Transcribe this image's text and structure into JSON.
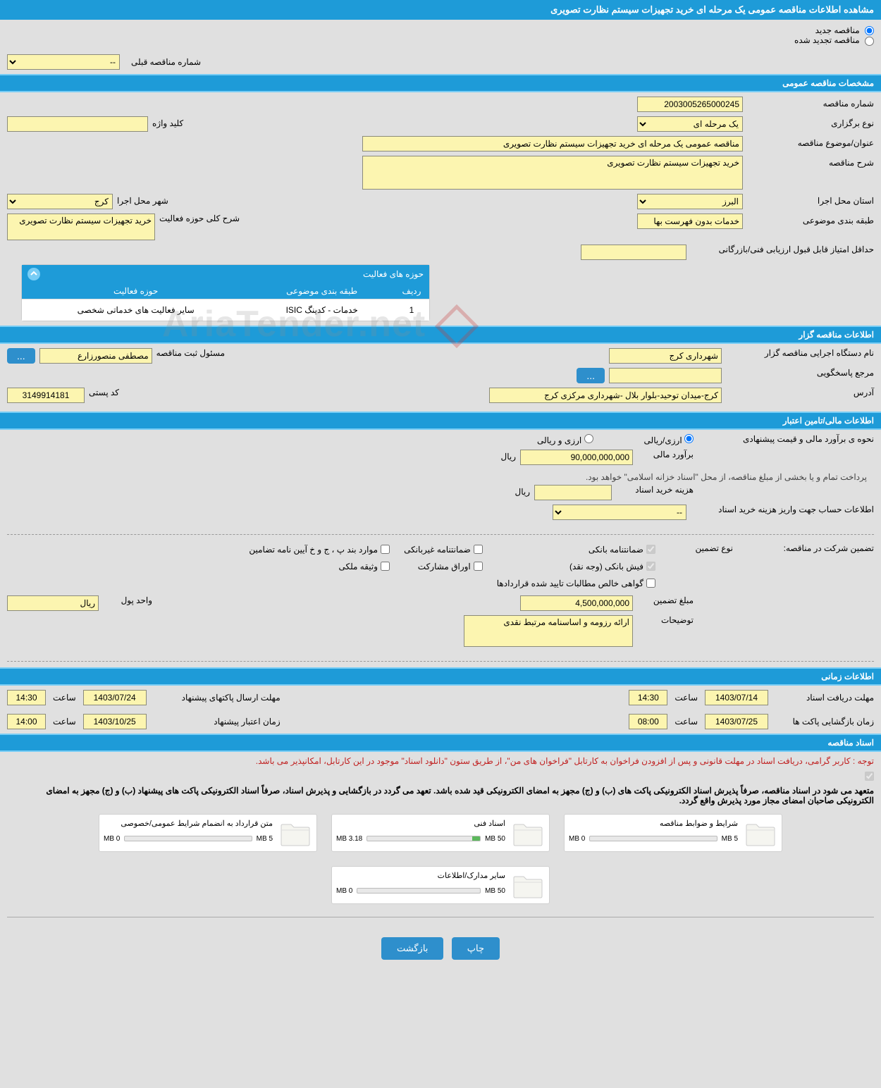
{
  "page_title": "مشاهده اطلاعات مناقصه عمومی یک مرحله ای خرید تجهیزات سیستم نظارت تصویری",
  "radio_new": "مناقصه جدید",
  "radio_renewed": "مناقصه تجدید شده",
  "prev_tender_label": "شماره مناقصه قبلی",
  "prev_tender_value": "--",
  "sections": {
    "general": "مشخصات مناقصه عمومی",
    "holder": "اطلاعات مناقصه گزار",
    "financial": "اطلاعات مالی/تامین اعتبار",
    "timing": "اطلاعات زمانی",
    "docs": "اسناد مناقصه"
  },
  "general": {
    "tender_no_label": "شماره مناقصه",
    "tender_no": "2003005265000245",
    "hold_type_label": "نوع برگزاری",
    "hold_type": "یک مرحله ای",
    "keyword_label": "کلید واژه",
    "keyword": "",
    "title_label": "عنوان/موضوع مناقصه",
    "title": "مناقصه عمومی یک مرحله ای خرید تجهیزات سیستم نظارت تصویری",
    "desc_label": "شرح مناقصه",
    "desc": "خرید تجهیزات سیستم نظارت تصویری",
    "province_label": "استان محل اجرا",
    "province": "البرز",
    "city_label": "شهر محل اجرا",
    "city": "کرج",
    "class_label": "طبقه بندی موضوعی",
    "class": "خدمات بدون فهرست بها",
    "activity_desc_label": "شرح کلی حوزه فعالیت",
    "activity_desc": "خرید تجهیزات سیستم نظارت تصویری",
    "min_score_label": "حداقل امتیاز قابل قبول ارزیابی فنی/بازرگانی",
    "min_score": ""
  },
  "activities": {
    "panel_title": "حوزه های فعالیت",
    "col_idx": "ردیف",
    "col_class": "طبقه بندی موضوعی",
    "col_area": "حوزه فعالیت",
    "rows": [
      {
        "idx": "1",
        "class": "خدمات - کدینگ ISIC",
        "area": "سایر فعالیت های خدماتی شخصی"
      }
    ]
  },
  "holder": {
    "org_label": "نام دستگاه اجرایی مناقصه گزار",
    "org": "شهرداری کرج",
    "reg_officer_label": "مسئول ثبت مناقصه",
    "reg_officer": "مصطفی منصورزارع",
    "resp_label": "مرجع پاسخگویی",
    "resp": "",
    "address_label": "آدرس",
    "address": "کرج-میدان توحید-بلوار بلال -شهرداری مرکزی کرج",
    "postal_label": "کد پستی",
    "postal": "3149914181"
  },
  "financial": {
    "estimate_method_label": "نحوه ی برآورد مالی و قیمت پیشنهادی",
    "opt_arzi_riali": "ارزی/ریالی",
    "opt_arzi_va_riali": "ارزی و ریالی",
    "estimate_label": "برآورد مالی",
    "estimate": "90,000,000,000",
    "rial": "ریال",
    "payment_note": "پرداخت تمام و یا بخشی از مبلغ مناقصه، از محل \"اسناد خزانه اسلامی\" خواهد بود.",
    "doc_fee_label": "هزینه خرید اسناد",
    "doc_fee": "",
    "acct_label": "اطلاعات حساب جهت واریز هزینه خرید اسناد",
    "acct_value": "--",
    "guarantee_type_label": "نوع تضمین",
    "guarantee_participation_label": "تضمین شرکت در مناقصه:",
    "chk_bank": "ضمانتنامه بانکی",
    "chk_nonbank": "ضمانتنامه غیربانکی",
    "chk_bondpj": "موارد بند پ ، ج و خ آیین نامه تضامین",
    "chk_fish": "فیش بانکی (وجه نقد)",
    "chk_oragh": "اوراق مشارکت",
    "chk_vasighe": "وثیقه ملکی",
    "chk_govahi": "گواهی خالص مطالبات تایید شده قراردادها",
    "guarantee_amount_label": "مبلغ تضمین",
    "guarantee_amount": "4,500,000,000",
    "currency_unit_label": "واحد پول",
    "currency_unit": "ریال",
    "notes_label": "توضیحات",
    "notes": "ارائه رزومه و اساسنامه مرتبط نقدی"
  },
  "timing": {
    "doc_receive_label": "مهلت دریافت اسناد",
    "doc_receive_date": "1403/07/14",
    "doc_receive_time": "14:30",
    "pkg_send_label": "مهلت ارسال پاکتهای پیشنهاد",
    "pkg_send_date": "1403/07/24",
    "pkg_send_time": "14:30",
    "open_label": "زمان بازگشایی پاکت ها",
    "open_date": "1403/07/25",
    "open_time": "08:00",
    "validity_label": "زمان اعتبار پیشنهاد",
    "validity_date": "1403/10/25",
    "validity_time": "14:00",
    "hour_label": "ساعت"
  },
  "docs": {
    "red_note": "توجه : کاربر گرامی، دریافت اسناد در مهلت قانونی و پس از افزودن فراخوان به کارتابل \"فراخوان های من\"، از طریق ستون \"دانلود اسناد\" موجود در این کارتابل، امکانپذیر می باشد.",
    "black_note": "متعهد می شود در اسناد مناقصه، صرفاً پذیرش اسناد الکترونیکی پاکت های (ب) و (ج) مجهز به امضای الکترونیکی قید شده باشد. تعهد می گردد در بازگشایی و پذیرش اسناد، صرفاً اسناد الکترونیکی پاکت های پیشنهاد (ب) و (ج) مجهز به امضای الکترونیکی صاحبان امضای مجاز مورد پذیرش واقع گردد.",
    "cards": [
      {
        "title": "شرایط و ضوابط مناقصه",
        "used": "0 MB",
        "total": "5 MB",
        "pct": 0
      },
      {
        "title": "اسناد فنی",
        "used": "3.18 MB",
        "total": "50 MB",
        "pct": 7
      },
      {
        "title": "متن قرارداد به انضمام شرایط عمومی/خصوصی",
        "used": "0 MB",
        "total": "5 MB",
        "pct": 0
      },
      {
        "title": "سایر مدارک/اطلاعات",
        "used": "0 MB",
        "total": "50 MB",
        "pct": 0
      }
    ]
  },
  "buttons": {
    "print": "چاپ",
    "back": "بازگشت",
    "more": "..."
  },
  "watermark": "AriaTender.net"
}
